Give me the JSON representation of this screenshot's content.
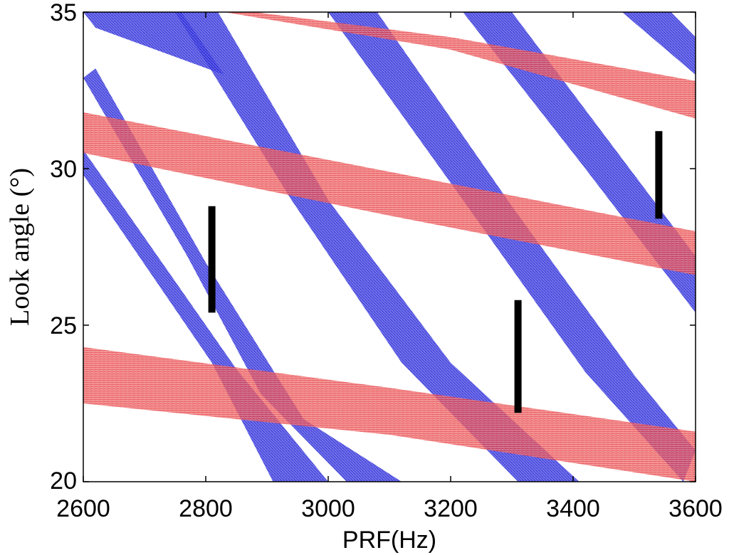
{
  "chart_data": {
    "type": "area",
    "xlabel": "PRF(Hz)",
    "ylabel": "Look angle (°)",
    "xlim": [
      2600,
      3600
    ],
    "ylim": [
      20,
      35
    ],
    "xticks": [
      2600,
      2800,
      3000,
      3200,
      3400,
      3600
    ],
    "yticks": [
      20,
      25,
      30,
      35
    ],
    "grid": false,
    "colors": {
      "blue_band": "#2b2bd6",
      "red_band": "#e3242b",
      "marker": "#000000"
    },
    "blue_bands": [
      {
        "top": [
          [
            2600,
            30.6
          ],
          [
            2850,
            23.6
          ],
          [
            3000,
            20.0
          ]
        ],
        "bottom": [
          [
            2600,
            29.8
          ],
          [
            2810,
            23.8
          ],
          [
            2910,
            20.0
          ]
        ]
      },
      {
        "top": [
          [
            2620,
            33.2
          ],
          [
            2800,
            27.0
          ],
          [
            2960,
            22.0
          ],
          [
            3120,
            20.0
          ]
        ],
        "bottom": [
          [
            2600,
            32.9
          ],
          [
            2770,
            27.2
          ],
          [
            2890,
            22.8
          ],
          [
            3030,
            20.0
          ]
        ]
      },
      {
        "top": [
          [
            2820,
            35.0
          ],
          [
            3000,
            29.0
          ],
          [
            3200,
            23.8
          ],
          [
            3410,
            20.0
          ]
        ],
        "bottom": [
          [
            2750,
            35.0
          ],
          [
            2940,
            29.0
          ],
          [
            3120,
            23.8
          ],
          [
            3310,
            20.0
          ]
        ]
      },
      {
        "top": [
          [
            3080,
            35.0
          ],
          [
            3300,
            28.8
          ],
          [
            3500,
            23.4
          ],
          [
            3600,
            21.0
          ]
        ],
        "bottom": [
          [
            3000,
            35.0
          ],
          [
            3220,
            29.0
          ],
          [
            3420,
            23.5
          ],
          [
            3580,
            20.0
          ]
        ]
      },
      {
        "top": [
          [
            3300,
            35.0
          ],
          [
            3500,
            29.8
          ],
          [
            3600,
            27.2
          ]
        ],
        "bottom": [
          [
            3220,
            35.0
          ],
          [
            3420,
            30.0
          ],
          [
            3600,
            25.4
          ]
        ]
      },
      {
        "top": [
          [
            3560,
            35.0
          ],
          [
            3600,
            34.2
          ]
        ],
        "bottom": [
          [
            3480,
            35.0
          ],
          [
            3600,
            33.0
          ]
        ]
      },
      {
        "top": [
          [
            2760,
            35.0
          ],
          [
            2830,
            33.0
          ]
        ],
        "bottom": [
          [
            2600,
            35.0
          ],
          [
            2620,
            34.5
          ]
        ]
      }
    ],
    "red_bands": [
      {
        "top": [
          [
            2600,
            24.3
          ],
          [
            3100,
            23.0
          ],
          [
            3600,
            21.6
          ]
        ],
        "bottom": [
          [
            2600,
            22.5
          ],
          [
            3100,
            21.5
          ],
          [
            3600,
            20.0
          ]
        ]
      },
      {
        "top": [
          [
            2600,
            31.8
          ],
          [
            3100,
            29.9
          ],
          [
            3600,
            28.0
          ]
        ],
        "bottom": [
          [
            2600,
            30.5
          ],
          [
            3100,
            28.5
          ],
          [
            3600,
            26.6
          ]
        ]
      },
      {
        "top": [
          [
            2880,
            35.0
          ],
          [
            3200,
            34.2
          ],
          [
            3600,
            32.8
          ]
        ],
        "bottom": [
          [
            2830,
            35.0
          ],
          [
            3200,
            33.8
          ],
          [
            3600,
            31.6
          ]
        ]
      }
    ],
    "markers": [
      {
        "x": 2810,
        "y": [
          25.4,
          28.8
        ]
      },
      {
        "x": 3310,
        "y": [
          22.2,
          25.8
        ]
      },
      {
        "x": 3540,
        "y": [
          28.4,
          31.2
        ]
      }
    ]
  }
}
